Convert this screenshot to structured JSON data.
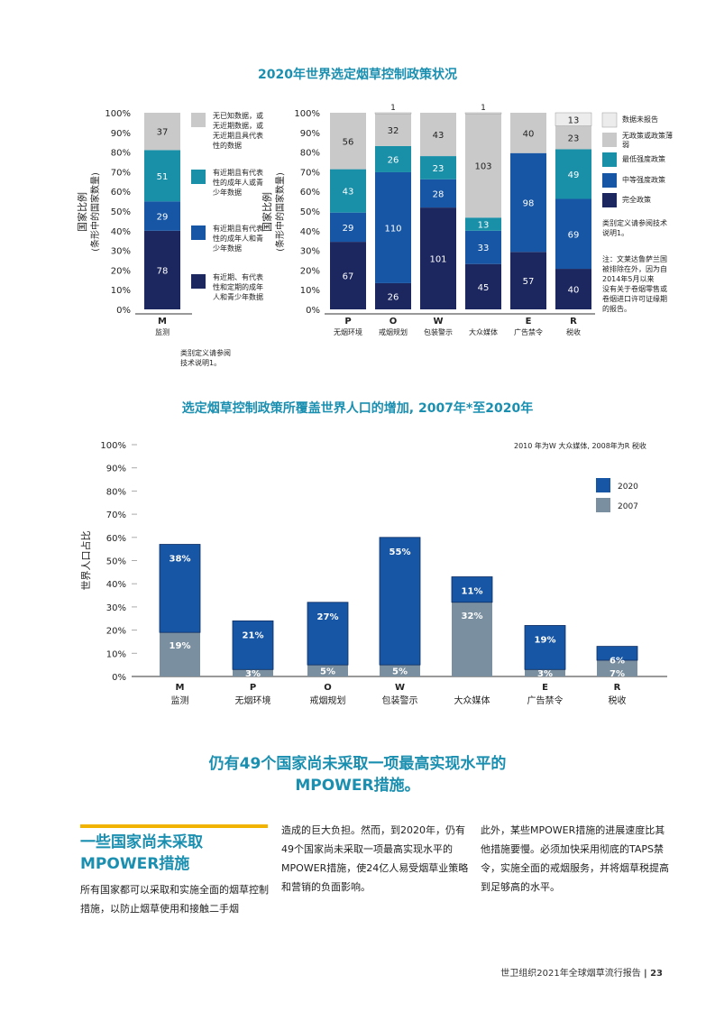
{
  "colors": {
    "gray": "#c9c9c9",
    "teal": "#1a8fa8",
    "blue": "#1756a5",
    "navy": "#1c275f",
    "light": "#ececec",
    "slate": "#7a8fa0",
    "title": "#1a8fb0"
  },
  "chart_data": [
    {
      "type": "bar",
      "stacked": true,
      "title": "2020年世界选定烟草控制政策状况",
      "ylabel": "国家比例\n(条形中的国家数量)",
      "ylim": [
        0,
        100
      ],
      "yticks": [
        "0%",
        "10%",
        "20%",
        "30%",
        "40%",
        "50%",
        "60%",
        "70%",
        "80%",
        "90%",
        "100%"
      ],
      "monitoring": {
        "category": "M",
        "sublabel": "监测",
        "segments": [
          {
            "name": "有近期、有代表性和定期的成年人和青少年数据",
            "value": 78
          },
          {
            "name": "有近期且有代表性的成年人和青少年数据",
            "value": 29
          },
          {
            "name": "有近期且有代表性的成年人或青少年数据",
            "value": 51
          },
          {
            "name": "无已知数据，或无近期数据，或无近期且具代表性的数据",
            "value": 37
          }
        ],
        "legend": [
          "无已知数据，或无近期数据，或无近期且具代表性的数据",
          "有近期且有代表性的成年人或青少年数据",
          "有近期且有代表性的成年人和青少年数据",
          "有近期、有代表性和定期的成年人和青少年数据"
        ],
        "note": "类别定义请参阅技术说明1。"
      },
      "policies": {
        "categories": [
          "P",
          "O",
          "W",
          "",
          "E",
          "R"
        ],
        "sublabels": [
          "无烟环境",
          "戒烟规划",
          "包装警示",
          "大众媒体",
          "广告禁令",
          "税收"
        ],
        "series": [
          {
            "name": "完全政策",
            "values": [
              67,
              26,
              101,
              45,
              57,
              40
            ]
          },
          {
            "name": "中等强度政策",
            "values": [
              29,
              110,
              28,
              33,
              98,
              69
            ]
          },
          {
            "name": "最低强度政策",
            "values": [
              43,
              26,
              23,
              13,
              0,
              49
            ]
          },
          {
            "name": "无政策或政策薄弱",
            "values": [
              56,
              32,
              43,
              103,
              40,
              23
            ]
          },
          {
            "name": "数据未报告",
            "values": [
              0,
              1,
              0,
              1,
              0,
              13
            ]
          }
        ],
        "legend": [
          "数据未报告",
          "无政策或政策薄弱",
          "最低强度政策",
          "中等强度政策",
          "完全政策"
        ],
        "note1": "类别定义请参阅技术说明1。",
        "note2": "注：文莱达鲁萨兰国被排除在外，因为自2014年5月以来没有关于卷烟零售或卷烟进口许可证缘期的报告。"
      }
    },
    {
      "type": "bar",
      "stacked": true,
      "title": "选定烟草控制政策所覆盖世界人口的增加, 2007年*至2020年",
      "ylabel": "世界人口占比",
      "ylim": [
        0,
        100
      ],
      "yticks": [
        "0%",
        "10%",
        "20%",
        "30%",
        "40%",
        "50%",
        "60%",
        "70%",
        "80%",
        "90%",
        "100%"
      ],
      "categories": [
        "M",
        "P",
        "O",
        "W",
        "",
        "E",
        "R"
      ],
      "sublabels": [
        "监测",
        "无烟环境",
        "戒烟规划",
        "包装警示",
        "大众媒体",
        "广告禁令",
        "税收"
      ],
      "series": [
        {
          "name": "2007",
          "values": [
            19,
            3,
            5,
            5,
            32,
            3,
            7
          ],
          "labels": [
            "19%",
            "3%",
            "5%",
            "5%",
            "32%",
            "3%",
            "7%"
          ]
        },
        {
          "name": "2020",
          "values": [
            38,
            21,
            27,
            55,
            11,
            19,
            6
          ],
          "labels": [
            "38%",
            "21%",
            "27%",
            "55%",
            "11%",
            "19%",
            "6%"
          ]
        }
      ],
      "legend": [
        "2020",
        "2007"
      ],
      "note": "2010 年为W 大众媒体, 2008年为R 税收"
    }
  ],
  "headline": {
    "line1": "仍有49个国家尚未采取一项最高实现水平的",
    "line2": "MPOWER措施。"
  },
  "section": {
    "title_line1": "一些国家尚未采取",
    "title_line2": "MPOWER措施",
    "col1": "所有国家都可以采取和实施全面的烟草控制措施，以防止烟草使用和接触二手烟",
    "col2": "造成的巨大负担。然而，到2020年，仍有49个国家尚未采取一项最高实现水平的MPOWER措施，使24亿人易受烟草业策略和营销的负面影响。",
    "col3": "此外，某些MPOWER措施的进展速度比其他措施要慢。必须加快采用彻底的TAPS禁令，实施全面的戒烟服务，并将烟草税提高到足够高的水平。"
  },
  "footer": {
    "text": "世卫组织2021年全球烟草流行报告",
    "page": "23"
  }
}
